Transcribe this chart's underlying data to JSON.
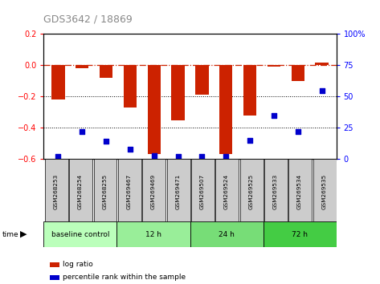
{
  "title": "GDS3642 / 18869",
  "samples": [
    "GSM268253",
    "GSM268254",
    "GSM268255",
    "GSM269467",
    "GSM269469",
    "GSM269471",
    "GSM269507",
    "GSM269524",
    "GSM269525",
    "GSM269533",
    "GSM269534",
    "GSM269535"
  ],
  "log_ratio": [
    -0.22,
    -0.02,
    -0.08,
    -0.27,
    -0.57,
    -0.35,
    -0.19,
    -0.57,
    -0.32,
    -0.01,
    -0.1,
    0.02
  ],
  "percentile_rank": [
    2,
    22,
    14,
    8,
    3,
    2,
    2,
    2,
    15,
    35,
    22,
    55
  ],
  "ylim_left": [
    -0.6,
    0.2
  ],
  "ylim_right": [
    0,
    100
  ],
  "yticks_left": [
    -0.6,
    -0.4,
    -0.2,
    0.0,
    0.2
  ],
  "yticks_right": [
    0,
    25,
    50,
    75,
    100
  ],
  "bar_color": "#cc2200",
  "dot_color": "#0000cc",
  "hline_color": "#cc2200",
  "dotline_color": "#000000",
  "groups": [
    {
      "label": "baseline control",
      "start": 0,
      "end": 3,
      "color": "#bbffbb"
    },
    {
      "label": "12 h",
      "start": 3,
      "end": 6,
      "color": "#99ee99"
    },
    {
      "label": "24 h",
      "start": 6,
      "end": 9,
      "color": "#77dd77"
    },
    {
      "label": "72 h",
      "start": 9,
      "end": 12,
      "color": "#44cc44"
    }
  ],
  "sample_box_color": "#cccccc",
  "legend_items": [
    {
      "label": "log ratio",
      "color": "#cc2200"
    },
    {
      "label": "percentile rank within the sample",
      "color": "#0000cc"
    }
  ],
  "bar_width": 0.55,
  "xlim": [
    -0.6,
    11.6
  ]
}
